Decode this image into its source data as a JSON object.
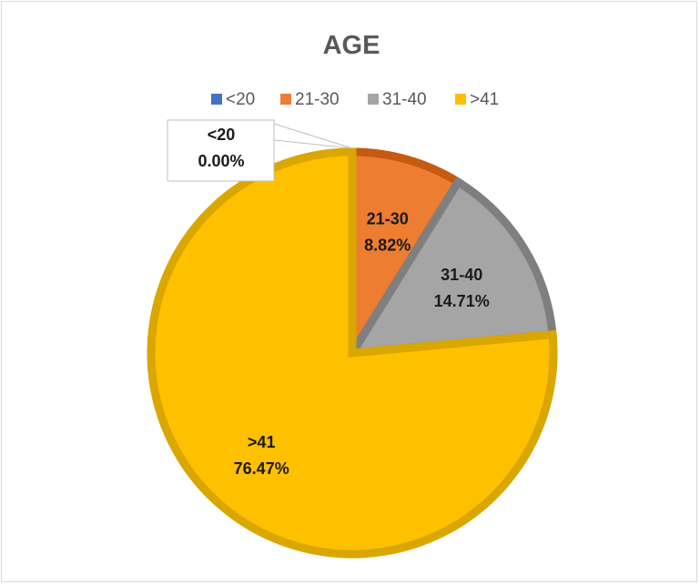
{
  "chart_data": {
    "type": "pie",
    "title": "AGE",
    "legend_position": "top",
    "categories": [
      "<20",
      "21-30",
      "31-40",
      ">41"
    ],
    "values": [
      0.0,
      8.82,
      14.71,
      76.47
    ],
    "value_labels": [
      "0.00%",
      "8.82%",
      "14.71%",
      "76.47%"
    ],
    "colors": [
      "#4472C4",
      "#ED7D31",
      "#A5A5A5",
      "#FFC000"
    ],
    "border_colors": [
      "#2F5597",
      "#C55A11",
      "#7F7F7F",
      "#DAA600"
    ]
  }
}
